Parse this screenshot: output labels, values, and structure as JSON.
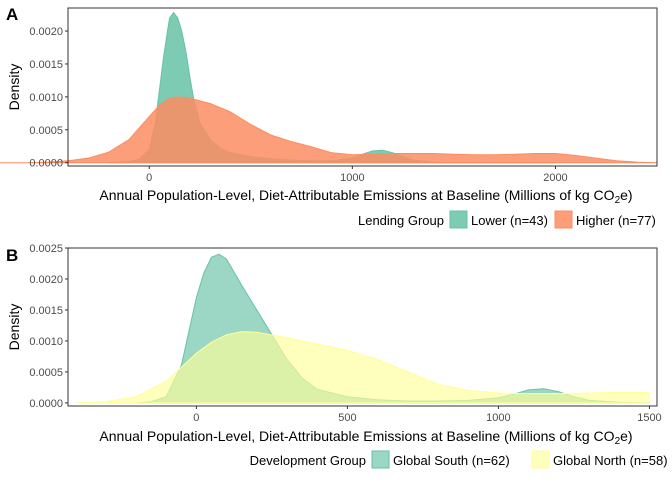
{
  "chart_data": [
    {
      "type": "area",
      "panel_tag": "A",
      "xlabel": "Annual Population-Level, Diet-Attributable Emissions at Baseline (Millions of kg CO",
      "xlabel_sub": "2",
      "xlabel_end": "e)",
      "ylabel": "Density",
      "xlim": [
        -400,
        2500
      ],
      "ylim": [
        -5e-05,
        0.00235
      ],
      "xticks": [
        0,
        1000,
        2000
      ],
      "yticks": [
        0,
        0.0005,
        0.001,
        0.0015,
        0.002
      ],
      "ytick_labels": [
        "0.0000",
        "0.0005",
        "0.0010",
        "0.0015",
        "0.0020"
      ],
      "legend": {
        "title": "Lending Group",
        "position": "bottom-right"
      },
      "series": [
        {
          "name": "Lower (n=43)",
          "color": "#66c2a5",
          "x": [
            -200,
            -100,
            -50,
            0,
            30,
            50,
            70,
            90,
            100,
            120,
            140,
            160,
            180,
            200,
            220,
            250,
            300,
            350,
            400,
            500,
            600,
            700,
            800,
            900,
            1000,
            1050,
            1100,
            1150,
            1200,
            1250,
            1300,
            1400,
            1500,
            2000
          ],
          "y": [
            0,
            2e-05,
            5e-05,
            0.0002,
            0.0006,
            0.0011,
            0.0016,
            0.002,
            0.0022,
            0.00228,
            0.0022,
            0.002,
            0.0017,
            0.0013,
            0.00095,
            0.0006,
            0.00035,
            0.00022,
            0.00015,
            9e-05,
            6e-05,
            4e-05,
            3e-05,
            3e-05,
            7e-05,
            0.00013,
            0.00018,
            0.00019,
            0.00015,
            9e-05,
            4e-05,
            1e-05,
            0,
            0
          ]
        },
        {
          "name": "Higher (n=77)",
          "color": "#fc8d62",
          "x": [
            -800,
            -600,
            -500,
            -400,
            -300,
            -200,
            -100,
            0,
            50,
            100,
            150,
            200,
            300,
            400,
            500,
            600,
            700,
            800,
            900,
            1000,
            1100,
            1200,
            1300,
            1400,
            1500,
            1600,
            1700,
            1800,
            1900,
            2000,
            2100,
            2200,
            2300,
            2400,
            2500
          ],
          "y": [
            0,
            0,
            1e-05,
            3e-05,
            7e-05,
            0.00016,
            0.00035,
            0.0007,
            0.00087,
            0.00098,
            0.001,
            0.00098,
            0.0009,
            0.00077,
            0.00058,
            0.00042,
            0.00032,
            0.00024,
            0.00015,
            0.00012,
            0.00013,
            0.00014,
            0.00014,
            0.00014,
            0.00013,
            0.00012,
            0.00012,
            0.00013,
            0.00014,
            0.00014,
            0.00011,
            7e-05,
            3e-05,
            1e-05,
            0
          ]
        }
      ]
    },
    {
      "type": "area",
      "panel_tag": "B",
      "xlabel": "Annual Population-Level, Diet-Attributable Emissions at Baseline (Millions of kg CO",
      "xlabel_sub": "2",
      "xlabel_end": "e)",
      "ylabel": "Density",
      "xlim": [
        -425,
        1525
      ],
      "ylim": [
        -5e-05,
        0.0025
      ],
      "xticks": [
        0,
        500,
        1000,
        1500
      ],
      "yticks": [
        0,
        0.0005,
        0.001,
        0.0015,
        0.002,
        0.0025
      ],
      "ytick_labels": [
        "0.0000",
        "0.0005",
        "0.0010",
        "0.0015",
        "0.0020",
        "0.0025"
      ],
      "legend": {
        "title": "Development Group",
        "position": "bottom-right"
      },
      "series": [
        {
          "name": "Global South (n=62)",
          "color": "#66c2a5",
          "x": [
            -200,
            -150,
            -100,
            -50,
            0,
            25,
            50,
            75,
            100,
            150,
            200,
            250,
            300,
            350,
            400,
            500,
            600,
            700,
            800,
            900,
            1000,
            1050,
            1100,
            1150,
            1200,
            1250,
            1300,
            1400,
            1500
          ],
          "y": [
            0,
            2e-05,
            0.0001,
            0.0006,
            0.0017,
            0.0021,
            0.00235,
            0.0024,
            0.00232,
            0.0019,
            0.0015,
            0.0011,
            0.0007,
            0.0004,
            0.00022,
            0.0001,
            5e-05,
            3e-05,
            3e-05,
            4e-05,
            8e-05,
            0.00014,
            0.00021,
            0.00023,
            0.00018,
            0.0001,
            4e-05,
            1e-05,
            0
          ]
        },
        {
          "name": "Global North (n=58)",
          "color": "#ffff99",
          "x": [
            -400,
            -300,
            -200,
            -100,
            0,
            50,
            100,
            150,
            200,
            300,
            400,
            500,
            600,
            700,
            800,
            900,
            1000,
            1100,
            1200,
            1300,
            1400,
            1500
          ],
          "y": [
            0,
            2e-05,
            0.0001,
            0.00035,
            0.0008,
            0.00098,
            0.0011,
            0.00115,
            0.00114,
            0.00105,
            0.00095,
            0.00085,
            0.0007,
            0.0005,
            0.0003,
            0.0002,
            0.00016,
            0.00015,
            0.00015,
            0.00016,
            0.00017,
            0.00017
          ]
        }
      ]
    }
  ]
}
